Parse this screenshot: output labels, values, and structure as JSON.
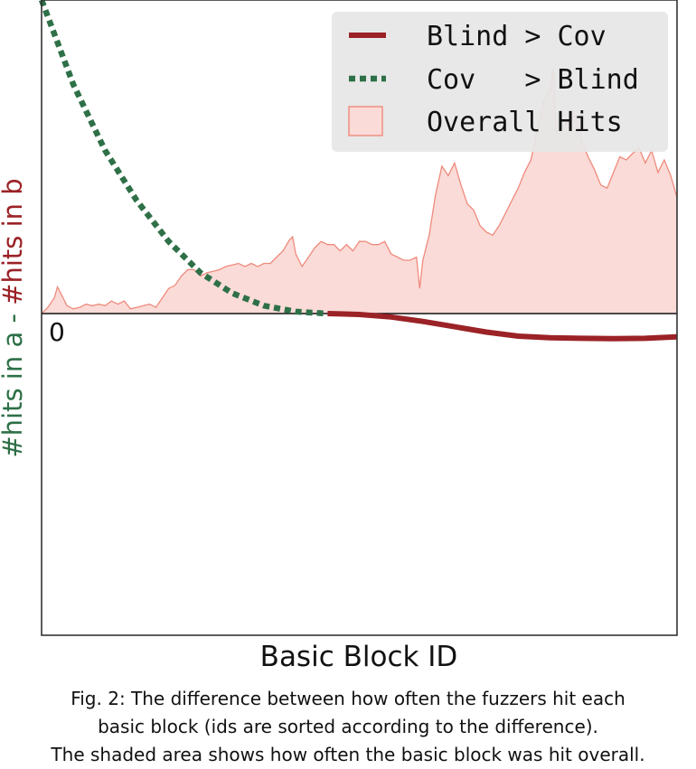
{
  "chart_data": {
    "type": "line",
    "xlabel": "Basic Block ID",
    "ylabel_parts": [
      {
        "text": "#hits in a",
        "color": "#2e7047"
      },
      {
        "text": " - ",
        "color": "#2e7047"
      },
      {
        "text": "#hits in b",
        "color": "#9b2226"
      }
    ],
    "zero_label": "0",
    "xlim": [
      0,
      100
    ],
    "ylim": [
      -100,
      100
    ],
    "legend": {
      "placement": "top-right",
      "entries": [
        {
          "label": "Blind > Cov",
          "style": "solid",
          "color": "#9b2226"
        },
        {
          "label": "Cov   > Blind",
          "style": "dotted",
          "color": "#2e7047"
        },
        {
          "label": "Overall Hits",
          "style": "area",
          "color": "#fadbd8",
          "edge": "#ef8a7c"
        }
      ]
    },
    "series": [
      {
        "name": "Cov   > Blind",
        "style": "dotted",
        "color": "#2e7047",
        "x": [
          0,
          5,
          10,
          15,
          20,
          25,
          30,
          35,
          40,
          45
        ],
        "y": [
          100,
          73,
          52,
          36,
          23,
          13,
          6.5,
          2.5,
          0.6,
          0
        ]
      },
      {
        "name": "Blind > Cov",
        "style": "solid",
        "color": "#9b2226",
        "x": [
          45,
          50,
          55,
          60,
          65,
          70,
          75,
          80,
          85,
          90,
          95,
          100
        ],
        "y": [
          0,
          -0.3,
          -1.1,
          -2.5,
          -4.2,
          -5.9,
          -7.2,
          -7.7,
          -7.9,
          -8.0,
          -7.9,
          -7.4
        ]
      },
      {
        "name": "Overall Hits",
        "style": "area",
        "color": "#fadbd8",
        "edge": "#ef8a7c",
        "x": [
          0,
          1,
          2,
          2.5,
          3,
          4,
          5,
          6,
          7,
          8,
          9,
          10,
          11,
          12,
          13,
          14,
          15,
          16,
          17,
          18,
          19,
          20,
          21,
          22,
          23,
          24,
          25,
          26,
          27,
          28,
          29,
          30,
          31,
          32,
          33,
          34,
          35,
          36,
          37,
          38,
          39,
          39.5,
          40,
          41,
          42,
          43,
          44,
          45,
          46,
          47,
          48,
          49,
          50,
          51,
          52,
          53,
          54,
          55,
          56,
          57,
          58,
          59,
          59.5,
          60,
          61,
          62,
          63,
          64,
          65,
          66,
          67,
          68,
          69,
          70,
          71,
          72,
          73,
          74,
          75,
          76,
          77,
          78,
          79,
          80,
          80.5,
          81,
          82,
          83,
          84,
          85,
          86,
          87,
          88,
          89,
          90,
          91,
          92,
          93,
          94,
          95,
          96,
          97,
          98,
          99,
          100
        ],
        "y": [
          0,
          2,
          5,
          8.5,
          6.5,
          2.5,
          1.5,
          2,
          3,
          2.5,
          3,
          2.5,
          4,
          3,
          4,
          1.5,
          2,
          2.5,
          3,
          2,
          5,
          8,
          9,
          12,
          14,
          14,
          12,
          13,
          13.5,
          14,
          15,
          15.5,
          16,
          15,
          16,
          15,
          16,
          16,
          18,
          20,
          23.5,
          24.5,
          19,
          15,
          18,
          21,
          23,
          22,
          22,
          20,
          22,
          20,
          23,
          23,
          22,
          22,
          23,
          19,
          18,
          17,
          17,
          18,
          8,
          17,
          25,
          38,
          47,
          44,
          48,
          41,
          35,
          33,
          28,
          26,
          25,
          28,
          32,
          36,
          40,
          45,
          49,
          58,
          68,
          71,
          78,
          58,
          59,
          62,
          63,
          55,
          50,
          46,
          41,
          40,
          45,
          50,
          49,
          51,
          53,
          48,
          52,
          45,
          49,
          44,
          37
        ]
      }
    ]
  },
  "caption": [
    "Fig. 2: The difference between how often the fuzzers hit each",
    "basic block (ids are sorted according to the difference).",
    "The shaded area shows how often the basic block was hit overall."
  ]
}
